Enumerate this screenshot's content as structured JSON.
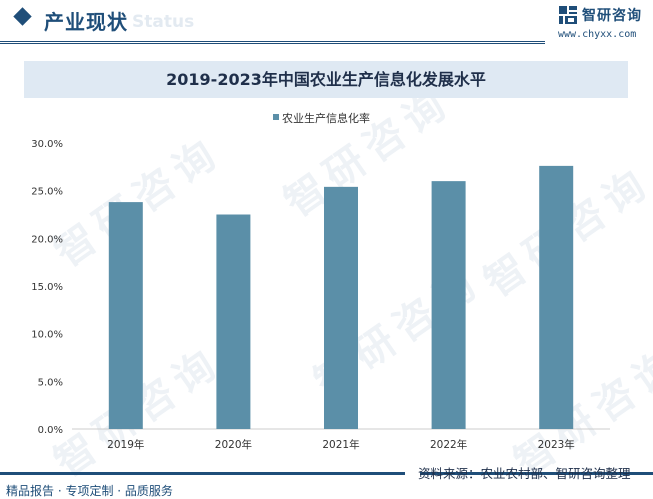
{
  "header": {
    "section_title": "产业现状",
    "section_watermark": "Status",
    "brand_name": "智研咨询",
    "brand_url": "www.chyxx.com"
  },
  "watermark_text": "智研咨询",
  "colors": {
    "brand": "#1f4e79",
    "bar": "#5b8fa8",
    "title_band": "#dfe9f3"
  },
  "chart_data": {
    "type": "bar",
    "title": "2019-2023年中国农业生产信息化发展水平",
    "categories": [
      "2019年",
      "2020年",
      "2021年",
      "2022年",
      "2023年"
    ],
    "series": [
      {
        "name": "农业生产信息化率",
        "values": [
          23.8,
          22.5,
          25.4,
          26.0,
          27.6
        ]
      }
    ],
    "ylim": [
      0,
      30
    ],
    "yticks": [
      0,
      5,
      10,
      15,
      20,
      25,
      30
    ],
    "ytick_labels": [
      "0.0%",
      "5.0%",
      "10.0%",
      "15.0%",
      "20.0%",
      "25.0%",
      "30.0%"
    ],
    "xlabel": "",
    "ylabel": "",
    "legend_position": "top-center",
    "grid": false
  },
  "footer": {
    "left": "精品报告 · 专项定制 · 品质服务",
    "source": "资料来源：农业农村部、智研咨询整理"
  }
}
